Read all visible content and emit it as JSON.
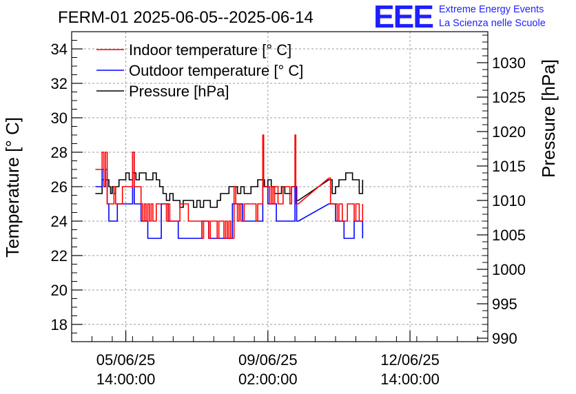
{
  "chart_data": {
    "type": "line",
    "title": "FERM-01 2025-06-05--2025-06-14",
    "logo": {
      "mark": "EEE",
      "line1": "Extreme Energy Events",
      "line2": "La Scienza nelle Scuole"
    },
    "ylabel_left": "Temperature [° C]",
    "ylabel_right": "Pressure [hPa]",
    "ylim_left": [
      17,
      35
    ],
    "ylim_right": [
      989.5,
      1034.5
    ],
    "xlim": [
      "2025-06-04 06:00",
      "2025-06-14 12:00"
    ],
    "grid": true,
    "legend_position": "top-left",
    "left_ticks": [
      18,
      20,
      22,
      24,
      26,
      28,
      30,
      32,
      34
    ],
    "right_ticks": [
      990,
      995,
      1000,
      1005,
      1010,
      1015,
      1020,
      1025,
      1030
    ],
    "x_ticks": [
      {
        "at": "2025-06-05 14:00",
        "date": "05/06/25",
        "time": "14:00:00"
      },
      {
        "at": "2025-06-09 02:00",
        "date": "09/06/25",
        "time": "02:00:00"
      },
      {
        "at": "2025-06-12 14:00",
        "date": "12/06/25",
        "time": "14:00:00"
      }
    ],
    "series": [
      {
        "name": "Indoor temperature [° C]",
        "color": "#ff0000",
        "axis": "left",
        "points": [
          [
            "2025-06-04 20:00",
            27
          ],
          [
            "2025-06-04 23:00",
            27
          ],
          [
            "2025-06-05 00:00",
            28
          ],
          [
            "2025-06-05 01:00",
            26
          ],
          [
            "2025-06-05 02:00",
            28
          ],
          [
            "2025-06-05 03:00",
            25
          ],
          [
            "2025-06-05 06:00",
            25
          ],
          [
            "2025-06-05 07:00",
            26
          ],
          [
            "2025-06-05 08:00",
            25
          ],
          [
            "2025-06-05 10:00",
            25
          ],
          [
            "2025-06-05 12:00",
            26
          ],
          [
            "2025-06-05 16:00",
            26
          ],
          [
            "2025-06-05 18:00",
            28
          ],
          [
            "2025-06-05 19:00",
            26
          ],
          [
            "2025-06-05 22:00",
            26
          ],
          [
            "2025-06-05 23:00",
            25
          ],
          [
            "2025-06-06 00:00",
            24
          ],
          [
            "2025-06-06 01:00",
            25
          ],
          [
            "2025-06-06 02:00",
            24
          ],
          [
            "2025-06-06 03:00",
            25
          ],
          [
            "2025-06-06 04:00",
            24
          ],
          [
            "2025-06-06 05:00",
            25
          ],
          [
            "2025-06-06 06:00",
            24
          ],
          [
            "2025-06-06 08:00",
            25
          ],
          [
            "2025-06-06 12:00",
            25
          ],
          [
            "2025-06-06 14:00",
            24
          ],
          [
            "2025-06-06 15:00",
            25
          ],
          [
            "2025-06-06 16:00",
            24
          ],
          [
            "2025-06-06 20:00",
            24
          ],
          [
            "2025-06-06 22:00",
            25
          ],
          [
            "2025-06-07 01:00",
            25
          ],
          [
            "2025-06-07 03:00",
            24
          ],
          [
            "2025-06-07 10:00",
            24
          ],
          [
            "2025-06-07 11:00",
            23
          ],
          [
            "2025-06-07 12:00",
            24
          ],
          [
            "2025-06-07 14:00",
            24
          ],
          [
            "2025-06-07 15:00",
            23
          ],
          [
            "2025-06-07 16:00",
            24
          ],
          [
            "2025-06-07 20:00",
            23
          ],
          [
            "2025-06-07 21:00",
            24
          ],
          [
            "2025-06-08 00:00",
            23
          ],
          [
            "2025-06-08 01:00",
            24
          ],
          [
            "2025-06-08 02:00",
            23
          ],
          [
            "2025-06-08 03:00",
            24
          ],
          [
            "2025-06-08 04:00",
            23
          ],
          [
            "2025-06-08 06:00",
            26
          ],
          [
            "2025-06-08 07:00",
            25
          ],
          [
            "2025-06-08 08:00",
            24
          ],
          [
            "2025-06-08 09:00",
            25
          ],
          [
            "2025-06-08 10:00",
            24
          ],
          [
            "2025-06-08 12:00",
            25
          ],
          [
            "2025-06-08 18:00",
            25
          ],
          [
            "2025-06-08 19:00",
            24
          ],
          [
            "2025-06-08 20:00",
            25
          ],
          [
            "2025-06-08 22:00",
            25
          ],
          [
            "2025-06-08 23:00",
            29
          ],
          [
            "2025-06-08 23:30",
            26
          ],
          [
            "2025-06-09 02:00",
            26
          ],
          [
            "2025-06-09 03:00",
            25
          ],
          [
            "2025-06-09 04:00",
            26
          ],
          [
            "2025-06-09 05:00",
            25
          ],
          [
            "2025-06-09 06:00",
            26
          ],
          [
            "2025-06-09 08:00",
            25
          ],
          [
            "2025-06-09 10:00",
            25
          ],
          [
            "2025-06-09 11:00",
            26
          ],
          [
            "2025-06-09 14:00",
            26
          ],
          [
            "2025-06-09 15:00",
            25
          ],
          [
            "2025-06-09 16:00",
            26
          ],
          [
            "2025-06-09 18:00",
            29
          ],
          [
            "2025-06-09 18:30",
            25
          ],
          [
            "2025-06-09 20:00",
            25
          ],
          [
            "2025-06-10 14:00",
            26.5
          ],
          [
            "2025-06-10 15:00",
            25
          ],
          [
            "2025-06-10 18:00",
            25
          ],
          [
            "2025-06-10 19:00",
            24
          ],
          [
            "2025-06-10 20:00",
            25
          ],
          [
            "2025-06-10 22:00",
            24
          ],
          [
            "2025-06-11 00:00",
            24
          ],
          [
            "2025-06-11 01:00",
            25
          ],
          [
            "2025-06-11 04:00",
            25
          ],
          [
            "2025-06-11 05:00",
            24
          ],
          [
            "2025-06-11 06:00",
            25
          ],
          [
            "2025-06-11 08:00",
            24
          ],
          [
            "2025-06-11 10:00",
            25
          ]
        ]
      },
      {
        "name": "Outdoor temperature [° C]",
        "color": "#0000ff",
        "axis": "left",
        "points": [
          [
            "2025-06-04 20:00",
            26
          ],
          [
            "2025-06-04 23:00",
            26
          ],
          [
            "2025-06-05 00:00",
            27
          ],
          [
            "2025-06-05 01:00",
            26
          ],
          [
            "2025-06-05 02:00",
            27
          ],
          [
            "2025-06-05 03:00",
            25
          ],
          [
            "2025-06-05 04:00",
            24
          ],
          [
            "2025-06-05 08:00",
            24
          ],
          [
            "2025-06-05 09:00",
            25
          ],
          [
            "2025-06-05 16:00",
            25
          ],
          [
            "2025-06-05 18:00",
            28
          ],
          [
            "2025-06-05 19:00",
            25
          ],
          [
            "2025-06-05 22:00",
            25
          ],
          [
            "2025-06-05 23:00",
            24
          ],
          [
            "2025-06-06 02:00",
            24
          ],
          [
            "2025-06-06 03:00",
            23
          ],
          [
            "2025-06-06 10:00",
            23
          ],
          [
            "2025-06-06 11:00",
            25
          ],
          [
            "2025-06-06 14:00",
            25
          ],
          [
            "2025-06-06 15:00",
            24
          ],
          [
            "2025-06-06 20:00",
            24
          ],
          [
            "2025-06-06 21:00",
            23
          ],
          [
            "2025-06-07 10:00",
            23
          ],
          [
            "2025-06-07 11:00",
            24
          ],
          [
            "2025-06-07 14:00",
            24
          ],
          [
            "2025-06-07 15:00",
            23
          ],
          [
            "2025-06-08 04:00",
            23
          ],
          [
            "2025-06-08 05:00",
            25
          ],
          [
            "2025-06-08 10:00",
            25
          ],
          [
            "2025-06-08 11:00",
            24
          ],
          [
            "2025-06-08 22:00",
            24
          ],
          [
            "2025-06-08 23:00",
            26
          ],
          [
            "2025-06-09 02:00",
            25
          ],
          [
            "2025-06-09 06:00",
            25
          ],
          [
            "2025-06-09 07:00",
            24
          ],
          [
            "2025-06-09 16:00",
            24
          ],
          [
            "2025-06-09 18:00",
            26
          ],
          [
            "2025-06-09 19:00",
            24
          ],
          [
            "2025-06-09 20:00",
            24
          ],
          [
            "2025-06-10 14:00",
            25
          ],
          [
            "2025-06-10 15:00",
            25
          ],
          [
            "2025-06-10 17:00",
            25
          ],
          [
            "2025-06-10 18:00",
            24
          ],
          [
            "2025-06-10 22:00",
            24
          ],
          [
            "2025-06-10 23:00",
            23
          ],
          [
            "2025-06-11 04:00",
            23
          ],
          [
            "2025-06-11 05:00",
            24
          ],
          [
            "2025-06-11 08:00",
            24
          ],
          [
            "2025-06-11 10:00",
            23
          ]
        ]
      },
      {
        "name": "Pressure [hPa]",
        "color": "#000000",
        "axis": "right",
        "points": [
          [
            "2025-06-04 20:00",
            1011
          ],
          [
            "2025-06-04 23:00",
            1011
          ],
          [
            "2025-06-05 00:00",
            1013
          ],
          [
            "2025-06-05 01:00",
            1012
          ],
          [
            "2025-06-05 02:00",
            1013
          ],
          [
            "2025-06-05 04:00",
            1012
          ],
          [
            "2025-06-05 05:00",
            1011
          ],
          [
            "2025-06-05 06:00",
            1012
          ],
          [
            "2025-06-05 07:00",
            1011
          ],
          [
            "2025-06-05 08:00",
            1012
          ],
          [
            "2025-06-05 10:00",
            1013
          ],
          [
            "2025-06-05 12:00",
            1013
          ],
          [
            "2025-06-05 14:00",
            1014
          ],
          [
            "2025-06-05 16:00",
            1013
          ],
          [
            "2025-06-05 18:00",
            1014
          ],
          [
            "2025-06-05 20:00",
            1013
          ],
          [
            "2025-06-05 22:00",
            1014
          ],
          [
            "2025-06-06 00:00",
            1014
          ],
          [
            "2025-06-06 02:00",
            1013
          ],
          [
            "2025-06-06 04:00",
            1013
          ],
          [
            "2025-06-06 06:00",
            1014
          ],
          [
            "2025-06-06 08:00",
            1013
          ],
          [
            "2025-06-06 10:00",
            1012
          ],
          [
            "2025-06-06 12:00",
            1011
          ],
          [
            "2025-06-06 14:00",
            1010
          ],
          [
            "2025-06-06 16:00",
            1011
          ],
          [
            "2025-06-06 18:00",
            1010
          ],
          [
            "2025-06-06 20:00",
            1010
          ],
          [
            "2025-06-06 22:00",
            1009
          ],
          [
            "2025-06-07 00:00",
            1010
          ],
          [
            "2025-06-07 04:00",
            1010
          ],
          [
            "2025-06-07 06:00",
            1009
          ],
          [
            "2025-06-07 08:00",
            1010
          ],
          [
            "2025-06-07 10:00",
            1009
          ],
          [
            "2025-06-07 12:00",
            1010
          ],
          [
            "2025-06-07 14:00",
            1010
          ],
          [
            "2025-06-07 16:00",
            1009
          ],
          [
            "2025-06-07 20:00",
            1010
          ],
          [
            "2025-06-07 22:00",
            1011
          ],
          [
            "2025-06-08 00:00",
            1011
          ],
          [
            "2025-06-08 02:00",
            1011
          ],
          [
            "2025-06-08 03:00",
            1012
          ],
          [
            "2025-06-08 06:00",
            1012
          ],
          [
            "2025-06-08 08:00",
            1011
          ],
          [
            "2025-06-08 10:00",
            1012
          ],
          [
            "2025-06-08 12:00",
            1011
          ],
          [
            "2025-06-08 14:00",
            1011
          ],
          [
            "2025-06-08 16:00",
            1012
          ],
          [
            "2025-06-08 18:00",
            1012
          ],
          [
            "2025-06-08 20:00",
            1013
          ],
          [
            "2025-06-08 23:00",
            1013
          ],
          [
            "2025-06-09 00:00",
            1012
          ],
          [
            "2025-06-09 02:00",
            1013
          ],
          [
            "2025-06-09 04:00",
            1012
          ],
          [
            "2025-06-09 06:00",
            1011
          ],
          [
            "2025-06-09 08:00",
            1011
          ],
          [
            "2025-06-09 10:00",
            1012
          ],
          [
            "2025-06-09 12:00",
            1011
          ],
          [
            "2025-06-09 14:00",
            1011
          ],
          [
            "2025-06-09 16:00",
            1012
          ],
          [
            "2025-06-09 18:00",
            1012
          ],
          [
            "2025-06-09 19:00",
            1010
          ],
          [
            "2025-06-09 20:00",
            1010
          ],
          [
            "2025-06-10 14:00",
            1013
          ],
          [
            "2025-06-10 16:00",
            1011
          ],
          [
            "2025-06-10 18:00",
            1012
          ],
          [
            "2025-06-10 20:00",
            1013
          ],
          [
            "2025-06-10 22:00",
            1013
          ],
          [
            "2025-06-11 00:00",
            1014
          ],
          [
            "2025-06-11 02:00",
            1014
          ],
          [
            "2025-06-11 04:00",
            1013
          ],
          [
            "2025-06-11 06:00",
            1013
          ],
          [
            "2025-06-11 08:00",
            1011
          ],
          [
            "2025-06-11 10:00",
            1013
          ]
        ]
      }
    ]
  }
}
